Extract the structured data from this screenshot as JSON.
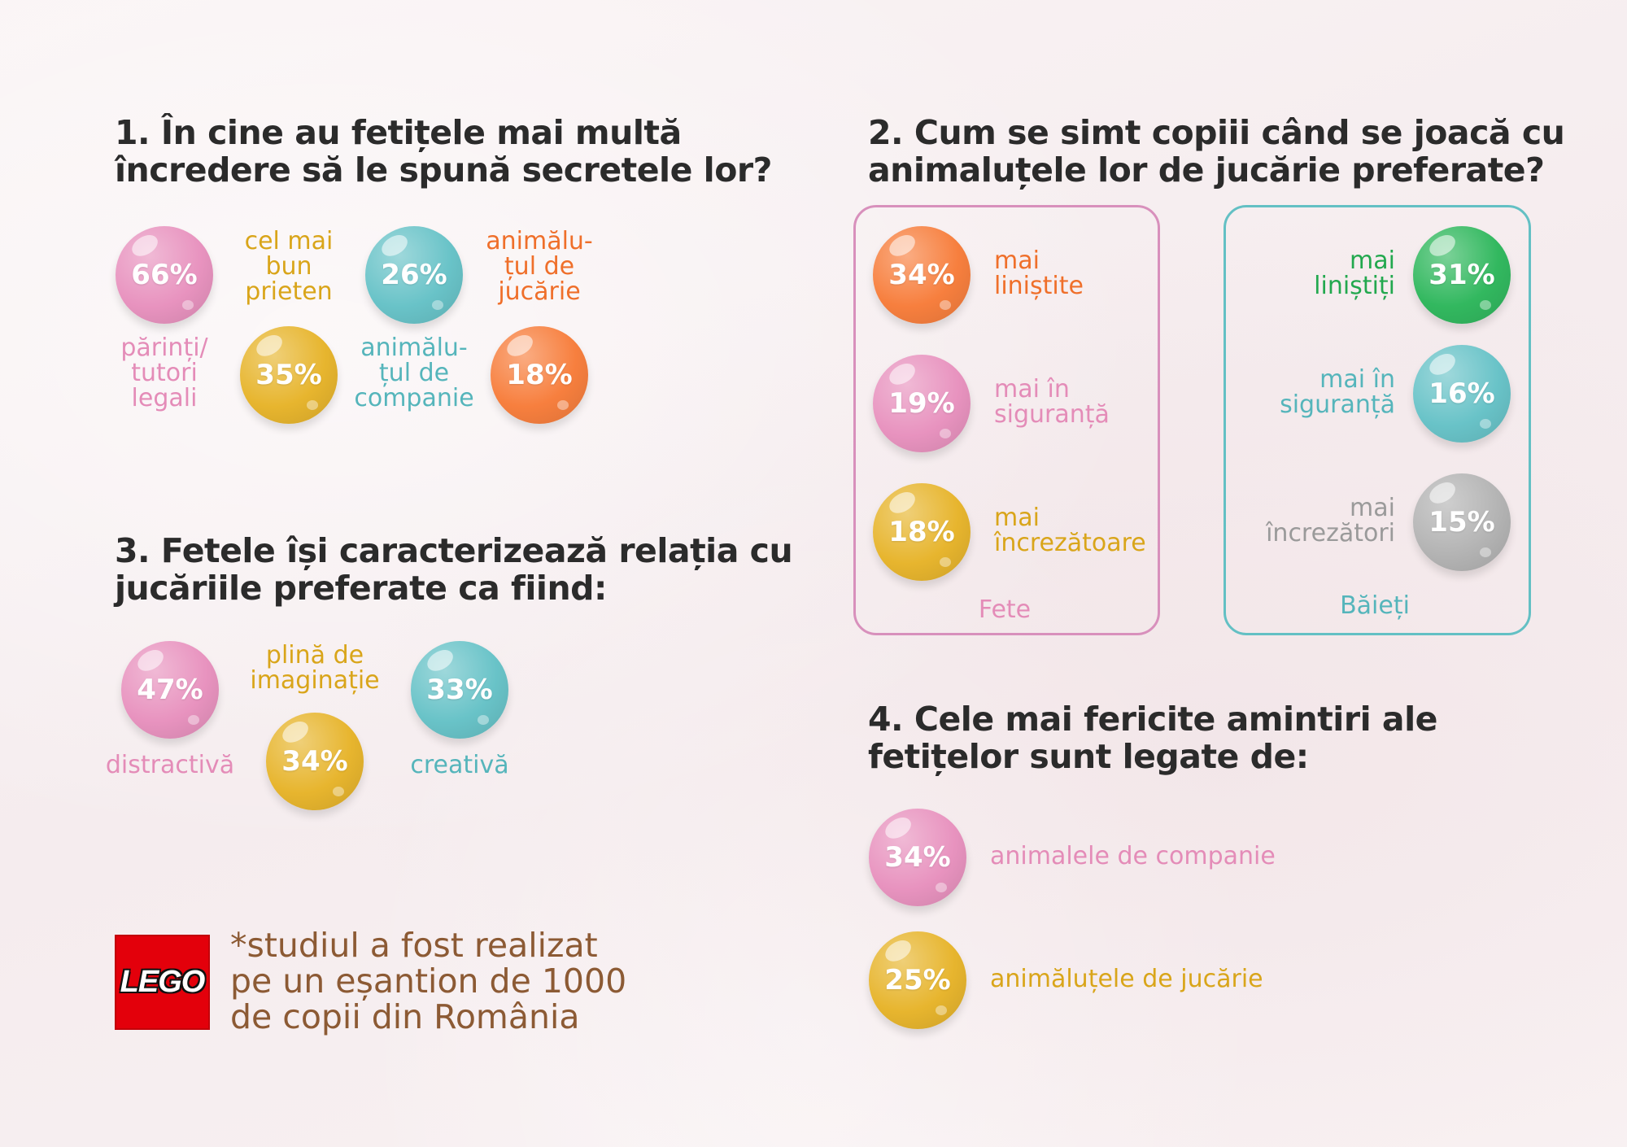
{
  "colors": {
    "pink": "#e893bf",
    "pink_text": "#e48cb8",
    "yellow": "#e7b52e",
    "yellow_text": "#d9a51a",
    "teal": "#69c3c8",
    "teal_text": "#55b5bb",
    "orange": "#f77f3e",
    "orange_text": "#ef6f2a",
    "green": "#32b85f",
    "green_text": "#22a84e",
    "gray": "#b4b4b4",
    "gray_text": "#9a9a9a",
    "box_girls": "#d890bc",
    "box_boys": "#63c0c4",
    "title": "#2b2b2b",
    "footnote": "#8c5a34",
    "logo_red": "#e3000b"
  },
  "section1": {
    "title_line1": "1. În cine au fetițele mai multă",
    "title_line2": "încredere să le spună secretele lor?",
    "items": [
      {
        "value": "66%",
        "label_lines": [
          "părinți/",
          "tutori",
          "legali"
        ],
        "color": "pink"
      },
      {
        "value": "35%",
        "label_lines": [
          "cel mai",
          "bun",
          "prieten"
        ],
        "color": "yellow"
      },
      {
        "value": "26%",
        "label_lines": [
          "animălu-",
          "țul de",
          "companie"
        ],
        "color": "teal"
      },
      {
        "value": "18%",
        "label_lines": [
          "animălu-",
          "țul de",
          "jucărie"
        ],
        "color": "orange"
      }
    ]
  },
  "section2": {
    "title_line1": "2. Cum se simt copiii când se joacă cu",
    "title_line2": "animaluțele lor de jucărie preferate?",
    "girls": {
      "caption": "Fete",
      "items": [
        {
          "value": "34%",
          "label_lines": [
            "mai",
            "liniștite"
          ],
          "color": "orange"
        },
        {
          "value": "19%",
          "label_lines": [
            "mai în",
            "siguranță"
          ],
          "color": "pink"
        },
        {
          "value": "18%",
          "label_lines": [
            "mai",
            "încrezătoare"
          ],
          "color": "yellow"
        }
      ]
    },
    "boys": {
      "caption": "Băieți",
      "items": [
        {
          "value": "31%",
          "label_lines": [
            "mai",
            "liniștiți"
          ],
          "color": "green"
        },
        {
          "value": "16%",
          "label_lines": [
            "mai în",
            "siguranță"
          ],
          "color": "teal"
        },
        {
          "value": "15%",
          "label_lines": [
            "mai",
            "încrezători"
          ],
          "color": "gray"
        }
      ]
    }
  },
  "section3": {
    "title_line1": "3. Fetele își caracterizează relația cu",
    "title_line2": "jucăriile preferate ca fiind:",
    "items": [
      {
        "value": "47%",
        "label_lines": [
          "distractivă"
        ],
        "color": "pink"
      },
      {
        "value": "34%",
        "label_lines": [
          "plină de",
          "imaginație"
        ],
        "color": "yellow"
      },
      {
        "value": "33%",
        "label_lines": [
          "creativă"
        ],
        "color": "teal"
      }
    ]
  },
  "section4": {
    "title_line1": "4. Cele mai fericite amintiri ale",
    "title_line2": "fetițelor sunt legate de:",
    "items": [
      {
        "value": "34%",
        "label_lines": [
          "animalele de companie"
        ],
        "color": "pink"
      },
      {
        "value": "25%",
        "label_lines": [
          "animăluțele de jucărie"
        ],
        "color": "yellow"
      }
    ]
  },
  "footnote": {
    "logo_text": "LEGO",
    "lines": [
      "*studiul a fost realizat",
      "pe un eșantion de 1000",
      "de copii din România"
    ]
  },
  "chart_data": [
    {
      "type": "bubble",
      "title": "1. În cine au fetițele mai multă încredere să le spună secretele lor?",
      "categories": [
        "părinți/tutori legali",
        "cel mai bun prieten",
        "animălu-țul de companie",
        "animălu-țul de jucărie"
      ],
      "values": [
        66,
        35,
        26,
        18
      ],
      "unit": "%"
    },
    {
      "type": "bubble",
      "title": "2. Cum se simt copiii când se joacă cu animaluțele lor de jucărie preferate?",
      "series": [
        {
          "name": "Fete",
          "categories": [
            "mai liniștite",
            "mai în siguranță",
            "mai încrezătoare"
          ],
          "values": [
            34,
            19,
            18
          ]
        },
        {
          "name": "Băieți",
          "categories": [
            "mai liniștiți",
            "mai în siguranță",
            "mai încrezători"
          ],
          "values": [
            31,
            16,
            15
          ]
        }
      ],
      "unit": "%"
    },
    {
      "type": "bubble",
      "title": "3. Fetele își caracterizează relația cu jucăriile preferate ca fiind:",
      "categories": [
        "distractivă",
        "plină de imaginație",
        "creativă"
      ],
      "values": [
        47,
        34,
        33
      ],
      "unit": "%"
    },
    {
      "type": "bubble",
      "title": "4. Cele mai fericite amintiri ale fetițelor sunt legate de:",
      "categories": [
        "animalele de companie",
        "animăluțele de jucărie"
      ],
      "values": [
        34,
        25
      ],
      "unit": "%"
    }
  ]
}
